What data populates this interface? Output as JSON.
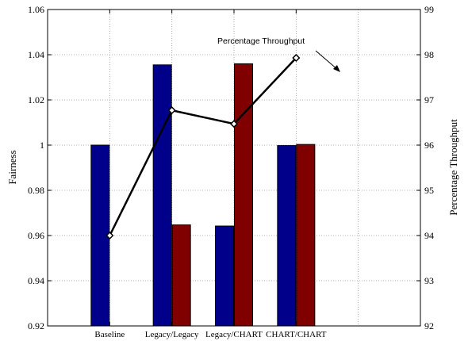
{
  "chart_data": {
    "type": "bar",
    "categories": [
      "Baseline",
      "Legacy/Legacy",
      "Legacy/CHART",
      "CHART/CHART"
    ],
    "series": [
      {
        "values": [
          1.0,
          1.0355,
          0.9642,
          0.9998
        ],
        "color": "#00008b",
        "axis": "left"
      },
      {
        "values": [
          null,
          0.9647,
          1.036,
          1.0003
        ],
        "color": "#800000",
        "axis": "left"
      }
    ],
    "line_series": {
      "name": "Percentage Throughput",
      "values": [
        94.0,
        96.77,
        96.47,
        97.93
      ],
      "color": "#000000",
      "marker": "diamond",
      "axis": "right"
    },
    "annotation": {
      "text": "Percentage Throughput"
    },
    "ylabel": "Fairness",
    "y2label": "Percentage Throughput",
    "ylim": [
      0.92,
      1.06
    ],
    "y2lim": [
      92,
      99
    ],
    "yticks": [
      "0.92",
      "0.94",
      "0.96",
      "0.98",
      "1",
      "1.02",
      "1.04",
      "1.06"
    ],
    "y2ticks": [
      "92",
      "93",
      "94",
      "95",
      "96",
      "97",
      "98",
      "99"
    ],
    "grid": true
  }
}
